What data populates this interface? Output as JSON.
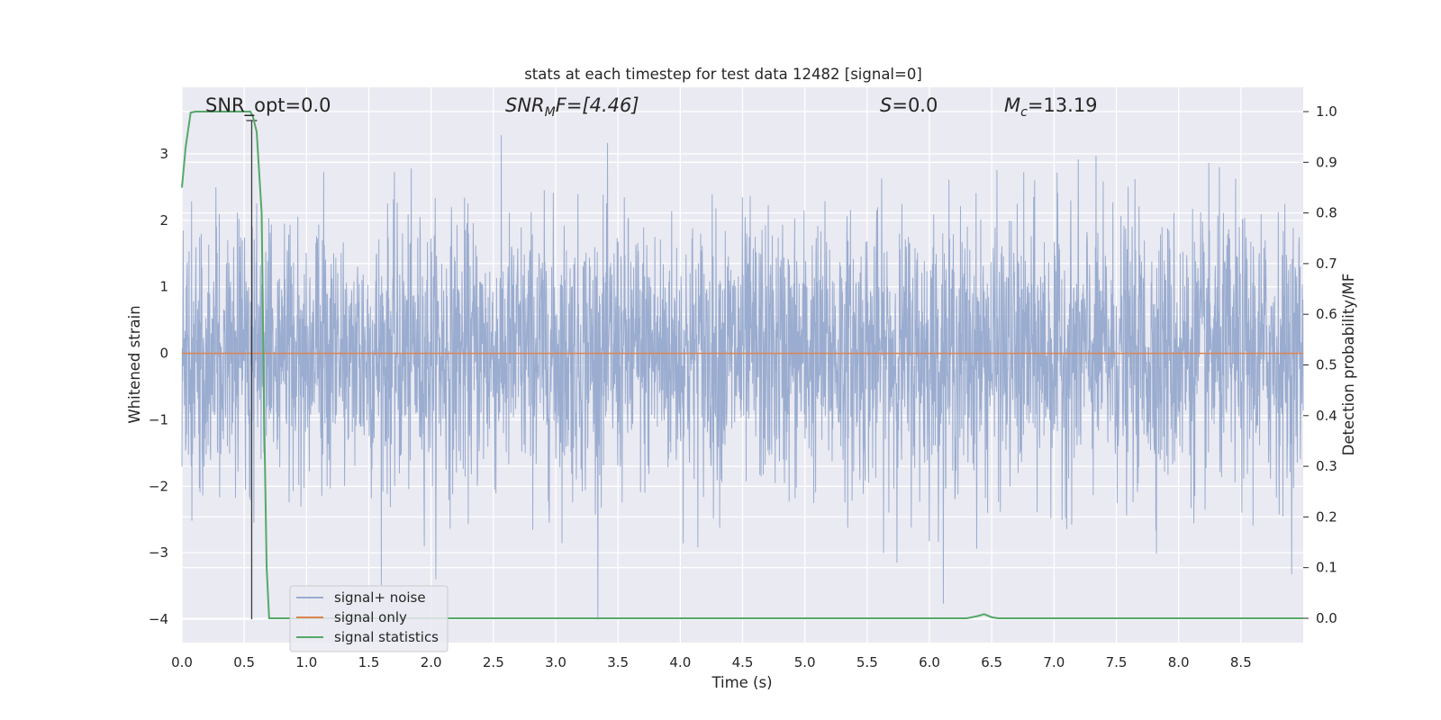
{
  "chart_data": {
    "type": "line",
    "title": "stats at each timestep for test data 12482 [signal=0]",
    "xlabel": "Time (s)",
    "ylabel": "Whitened strain",
    "y2label": "Detection probability/MF",
    "xlim": [
      0.0,
      9.0
    ],
    "ylim": [
      -4.35,
      4.0
    ],
    "y2lim": [
      -0.048,
      1.048
    ],
    "x_ticks": [
      "0.0",
      "0.5",
      "1.0",
      "1.5",
      "2.0",
      "2.5",
      "3.0",
      "3.5",
      "4.0",
      "4.5",
      "5.0",
      "5.5",
      "6.0",
      "6.5",
      "7.0",
      "7.5",
      "8.0",
      "8.5"
    ],
    "y_ticks": [
      "3",
      "2",
      "1",
      "0",
      "−1",
      "−2",
      "−3",
      "−4"
    ],
    "y2_ticks": [
      "1.0",
      "0.9",
      "0.8",
      "0.7",
      "0.6",
      "0.5",
      "0.4",
      "0.3",
      "0.2",
      "0.1",
      "0.0"
    ],
    "grid": true,
    "legend_position": "lower-left",
    "annotations": {
      "snr_opt": "SNR_opt=0.0",
      "snr_mf": "SNR",
      "snr_mf_sub": "M",
      "snr_mf_tail": "F=[4.46]",
      "s_stat": "S",
      "s_stat_tail": "=0.0",
      "mc": "M",
      "mc_sub": "c",
      "mc_tail": "=13.19"
    },
    "marker_line": {
      "x": 0.56,
      "y_top": 3.5,
      "y_bottom": -4.0
    },
    "series": [
      {
        "name": "signal+ noise",
        "color": "#9aaccf",
        "description_noise_std": 1.0,
        "x_range": [
          0.0,
          9.0
        ]
      },
      {
        "name": "signal only",
        "color": "#dd8452",
        "x": [
          0.0,
          9.0
        ],
        "y": [
          0.0,
          0.0
        ]
      },
      {
        "name": "signal statistics",
        "color": "#55a868",
        "axis": "right",
        "x": [
          0.0,
          0.03,
          0.07,
          0.11,
          0.2,
          0.3,
          0.4,
          0.5,
          0.55,
          0.57,
          0.6,
          0.62,
          0.64,
          0.66,
          0.68,
          0.7,
          0.75,
          1.0,
          2.0,
          3.0,
          4.0,
          5.0,
          6.0,
          6.3,
          6.38,
          6.44,
          6.5,
          6.55,
          7.0,
          8.0,
          9.0
        ],
        "y": [
          0.85,
          0.93,
          0.998,
          1.0,
          1.0,
          1.0,
          1.0,
          1.0,
          1.0,
          0.99,
          0.96,
          0.88,
          0.8,
          0.4,
          0.1,
          0.0,
          0.0,
          0.0,
          0.0,
          0.0,
          0.0,
          0.0,
          0.0,
          0.0,
          0.004,
          0.008,
          0.002,
          0.0,
          0.0,
          0.0,
          0.0
        ]
      }
    ]
  }
}
